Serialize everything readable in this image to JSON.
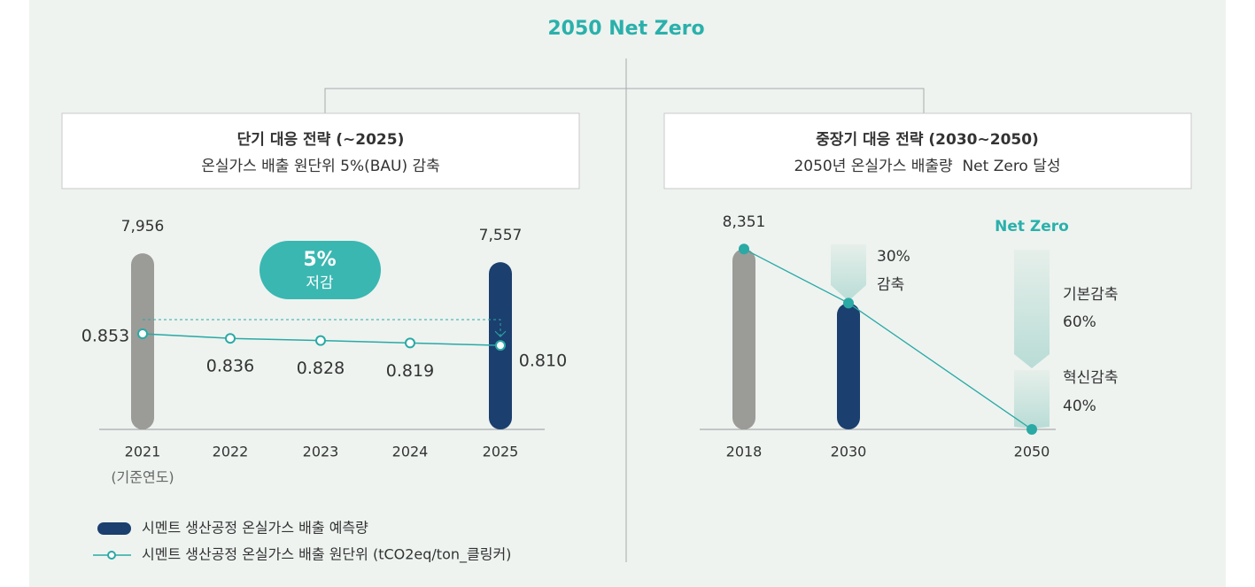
{
  "title": "2050 Net Zero",
  "chart_data": [
    {
      "type": "bar",
      "title": "단기 대응 전략 (~2025)",
      "subtitle": "온실가스 배출 원단위 5%(BAU) 감축",
      "categories": [
        "2021",
        "2022",
        "2023",
        "2024",
        "2025"
      ],
      "category_notes": [
        "(기준연도)",
        null,
        null,
        null,
        null
      ],
      "series": [
        {
          "name": "시멘트 생산공정 온실가스 배출 예측량",
          "type": "bar",
          "color": "#1b3f6e",
          "colors": [
            "#9b9b98",
            null,
            null,
            null,
            "#1b3f6e"
          ],
          "values": [
            7956,
            null,
            null,
            null,
            7557
          ],
          "value_labels": [
            "7,956",
            null,
            null,
            null,
            "7,557"
          ]
        },
        {
          "name": "시멘트 생산공정 온실가스 배출 원단위 (tCO2eq/ton_클링커)",
          "type": "line",
          "axis": "y2",
          "color": "#2aa9a5",
          "values": [
            0.853,
            0.836,
            0.828,
            0.819,
            0.81
          ],
          "value_labels": [
            "0.853",
            "0.836",
            "0.828",
            "0.819",
            "0.810"
          ]
        }
      ],
      "ylim": [
        0,
        8200
      ],
      "y2lim": [
        0.5,
        1.17
      ],
      "legend": true,
      "annotations": [
        "5%",
        "저감"
      ]
    },
    {
      "type": "bar",
      "title": "중장기 대응 전략 (2030~2050)",
      "subtitle": "2050년 온실가스 배출량  Net Zero 달성",
      "categories": [
        "2018",
        "2030",
        "2050"
      ],
      "series": [
        {
          "name": "온실가스 배출량",
          "type": "bar",
          "color": "#1b3f6e",
          "line_color": "#2aa9a5",
          "colors": [
            "#9b9b98",
            "#1b3f6e",
            null
          ],
          "values": [
            8351,
            5846,
            0
          ],
          "value_labels": [
            "8,351",
            null,
            "Net Zero"
          ]
        }
      ],
      "ylim": [
        0,
        8400
      ],
      "legend": false,
      "annotations": [
        "30%",
        "감축",
        "기본감축",
        "60%",
        "혁신감축",
        "40%"
      ]
    }
  ]
}
